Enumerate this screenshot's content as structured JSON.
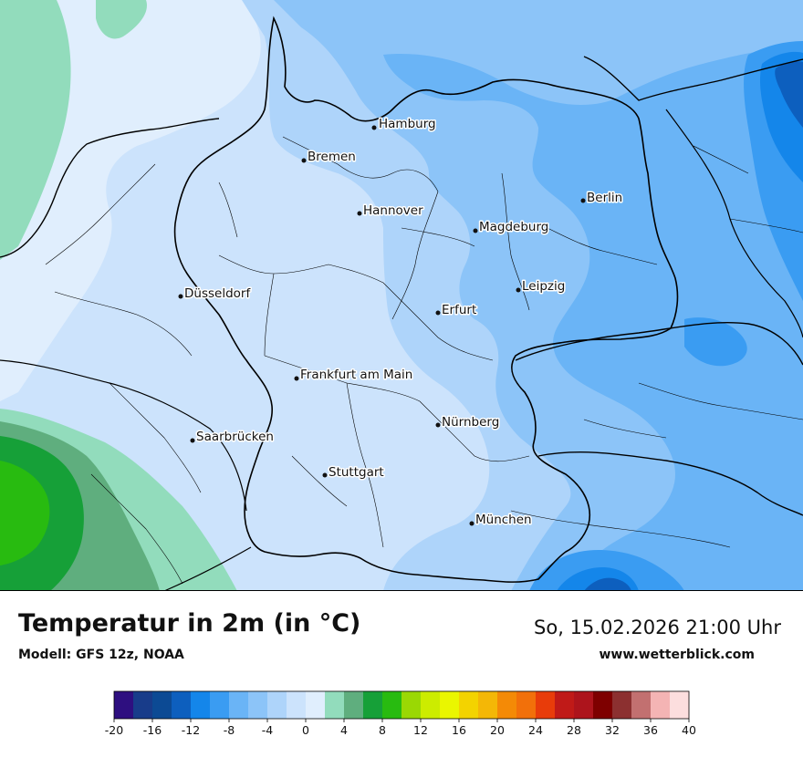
{
  "map": {
    "cities": [
      {
        "name": "Hamburg"
      },
      {
        "name": "Bremen"
      },
      {
        "name": "Berlin"
      },
      {
        "name": "Hannover"
      },
      {
        "name": "Magdeburg"
      },
      {
        "name": "Leipzig"
      },
      {
        "name": "Düsseldorf"
      },
      {
        "name": "Erfurt"
      },
      {
        "name": "Frankfurt am Main"
      },
      {
        "name": "Nürnberg"
      },
      {
        "name": "Saarbrücken"
      },
      {
        "name": "Stuttgart"
      },
      {
        "name": "München"
      }
    ]
  },
  "footer": {
    "title": "Temperatur in 2m (in °C)",
    "model": "Modell: GFS 12z, NOAA",
    "datetime": "So, 15.02.2026 21:00 Uhr",
    "website": "www.wetterblick.com"
  },
  "legend": {
    "unit": "°C",
    "min": -20,
    "max": 40,
    "step": 2,
    "tick_labels": [
      "-20",
      "-16",
      "-12",
      "-8",
      "-4",
      "0",
      "4",
      "8",
      "12",
      "16",
      "20",
      "24",
      "28",
      "32",
      "36",
      "40"
    ],
    "colors": [
      "#2e0f80",
      "#183c8a",
      "#0c4a94",
      "#0d5fbe",
      "#1486ea",
      "#3a9cf2",
      "#6ab4f6",
      "#8cc4f8",
      "#aed4fa",
      "#cce3fc",
      "#e0eefd",
      "#92dcbc",
      "#5fae7e",
      "#16a038",
      "#28bb10",
      "#9ad804",
      "#ccec00",
      "#eaf600",
      "#f3d300",
      "#f4b706",
      "#f48a06",
      "#f2700a",
      "#e83c0a",
      "#c01a18",
      "#ad141c",
      "#7e0000",
      "#8c3030",
      "#c27070",
      "#f4b4b4",
      "#fcdede"
    ]
  }
}
